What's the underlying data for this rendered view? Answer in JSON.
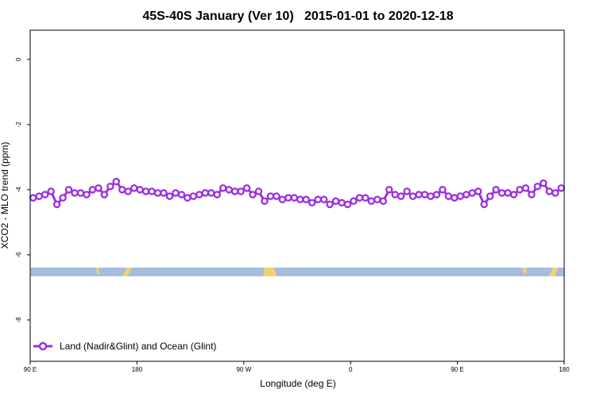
{
  "chart_data": {
    "type": "line",
    "title": "45S-40S January (Ver 10)   2015-01-01 to 2020-12-18",
    "x_label": "Longitude (deg E)",
    "y_label": "XCO2 - MLO trend (ppm)",
    "xlim": [
      90,
      540
    ],
    "xticks": [
      {
        "value": 90,
        "label": "90 E"
      },
      180,
      {
        "value": 270,
        "label": "90 W"
      },
      {
        "value": 360,
        "label": "0"
      },
      {
        "value": 450,
        "label": "90 E"
      },
      {
        "value": 540,
        "label": "180"
      }
    ],
    "ylim": [
      -9.27,
      0.9
    ],
    "yticks": [
      -8,
      -6,
      -4,
      -2,
      0
    ],
    "legend": "bottom-left",
    "x": [
      92.5,
      97.5,
      102.5,
      107.5,
      112.5,
      117.5,
      122.5,
      127.5,
      132.5,
      137.5,
      142.5,
      147.5,
      152.5,
      157.5,
      162.5,
      167.5,
      172.5,
      177.5,
      182.5,
      187.5,
      192.5,
      197.5,
      202.5,
      207.5,
      212.5,
      217.5,
      222.5,
      227.5,
      232.5,
      237.5,
      242.5,
      247.5,
      252.5,
      257.5,
      262.5,
      267.5,
      272.5,
      277.5,
      282.5,
      287.5,
      292.5,
      297.5,
      302.5,
      307.5,
      312.5,
      317.5,
      322.5,
      327.5,
      332.5,
      337.5,
      342.5,
      347.5,
      352.5,
      357.5,
      362.5,
      367.5,
      372.5,
      377.5,
      382.5,
      387.5,
      392.5,
      397.5,
      402.5,
      407.5,
      412.5,
      417.5,
      422.5,
      427.5,
      432.5,
      437.5,
      442.5,
      447.5,
      452.5,
      457.5,
      462.5,
      467.5,
      472.5,
      477.5,
      482.5,
      487.5,
      492.5,
      497.5,
      502.5,
      507.5,
      512.5,
      517.5,
      522.5,
      527.5,
      532.5,
      537.5
    ],
    "series": [
      {
        "name": "Land (Nadir&Glint) and Ocean (Glint)",
        "color": "#9b30e0",
        "values": [
          -4.25,
          -4.2,
          -4.15,
          -4.05,
          -4.45,
          -4.25,
          -4.0,
          -4.1,
          -4.1,
          -4.15,
          -4.0,
          -3.95,
          -4.15,
          -3.9,
          -3.75,
          -4.0,
          -4.05,
          -3.95,
          -4.0,
          -4.05,
          -4.05,
          -4.1,
          -4.1,
          -4.2,
          -4.1,
          -4.15,
          -4.25,
          -4.2,
          -4.15,
          -4.1,
          -4.1,
          -4.15,
          -3.95,
          -4.0,
          -4.05,
          -4.05,
          -3.95,
          -4.15,
          -4.05,
          -4.35,
          -4.2,
          -4.2,
          -4.3,
          -4.25,
          -4.25,
          -4.3,
          -4.3,
          -4.4,
          -4.3,
          -4.3,
          -4.45,
          -4.35,
          -4.4,
          -4.45,
          -4.35,
          -4.25,
          -4.25,
          -4.35,
          -4.3,
          -4.35,
          -4.0,
          -4.15,
          -4.2,
          -4.05,
          -4.2,
          -4.15,
          -4.15,
          -4.2,
          -4.15,
          -4.0,
          -4.2,
          -4.25,
          -4.2,
          -4.15,
          -4.1,
          -4.05,
          -4.45,
          -4.2,
          -4.0,
          -4.1,
          -4.1,
          -4.15,
          -4.0,
          -3.95,
          -4.15,
          -3.9,
          -3.8,
          -4.05,
          -4.1,
          -3.95
        ]
      }
    ]
  }
}
